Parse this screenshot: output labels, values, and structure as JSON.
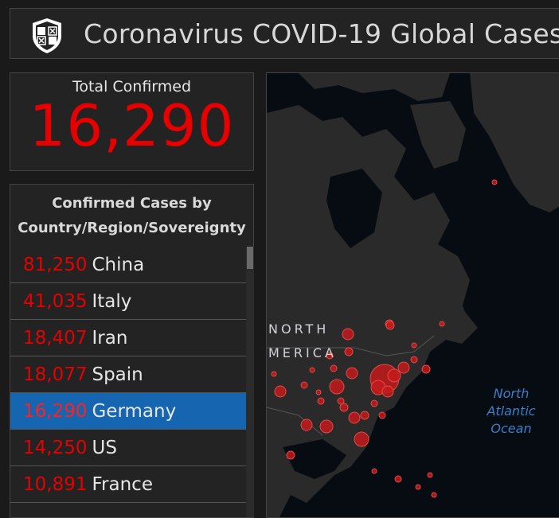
{
  "header": {
    "title": "Coronavirus COVID-19 Global Cases",
    "logo_icon": "university-shield-icon"
  },
  "total": {
    "label": "Total Confirmed",
    "value": "16,290"
  },
  "country_list": {
    "title_line1": "Confirmed Cases by",
    "title_line2": "Country/Region/Sovereignty",
    "items": [
      {
        "count": "81,250",
        "name": "China"
      },
      {
        "count": "41,035",
        "name": "Italy"
      },
      {
        "count": "18,407",
        "name": "Iran"
      },
      {
        "count": "18,077",
        "name": "Spain"
      },
      {
        "count": "16,290",
        "name": "Germany",
        "selected": true
      },
      {
        "count": "14,250",
        "name": "US"
      },
      {
        "count": "10,891",
        "name": "France"
      }
    ]
  },
  "map": {
    "label_north": "NORTH",
    "label_america": "MERICA",
    "ocean_line1": "North",
    "ocean_line2": "Atlantic",
    "ocean_line3": "Ocean"
  },
  "colors": {
    "accent_red": "#e60000",
    "selected_blue": "#1565b0",
    "ocean_text": "#3b7fc9",
    "land": "#2a2a2a",
    "water": "#070b12"
  }
}
